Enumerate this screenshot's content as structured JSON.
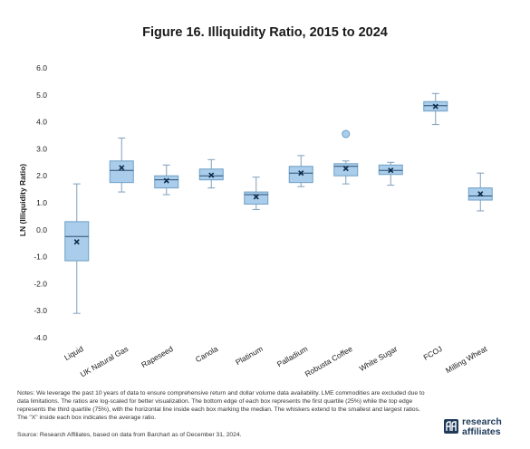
{
  "title": "Figure 16. Illiquidity Ratio, 2015 to 2024",
  "notes": "Notes: We leverage the past 10 years of data to ensure comprehensive return and dollar volume data availability. LME commodities are excluded due to data limitations. The ratios are log-scaled for better visualization. The bottom edge of each box represents the first quartile (25%) while the top edge represents the third quartile (75%), with the horizontal line inside each box marking the median. The whiskers extend to the smallest and largest ratios. The \"X\" inside each box indicates the average ratio.",
  "source": "Source: Research Affiliates, based on data from Barchart as of December 31, 2024.",
  "logo": {
    "line1": "research",
    "line2": "affiliates",
    "icon": "ra-logo-icon"
  },
  "colors": {
    "box_fill": "#a9cdea",
    "box_stroke": "#6f9fc6",
    "whisker": "#7f9fbc",
    "mean_marker": "#0d2a4a",
    "outlier": "#a9cdea"
  },
  "chart_data": {
    "type": "box",
    "title": "Figure 16. Illiquidity Ratio, 2015 to 2024",
    "ylabel": "LN (Illiquidity Ratio)",
    "xlabel": "",
    "ylim": [
      -4.0,
      6.0
    ],
    "yticks": [
      "6.0",
      "5.0",
      "4.0",
      "3.0",
      "2.0",
      "1.0",
      "0.0",
      "-1.0",
      "-2.0",
      "-3.0",
      "-4.0"
    ],
    "ytick_values": [
      6,
      5,
      4,
      3,
      2,
      1,
      0,
      -1,
      -2,
      -3,
      -4
    ],
    "grid": false,
    "categories": [
      "Liquid",
      "UK Natural Gas",
      "Rapeseed",
      "Canola",
      "Platinum",
      "Palladium",
      "Robusta Coffee",
      "White Sugar",
      "FCOJ",
      "Milling Wheat"
    ],
    "boxes": [
      {
        "min": -3.1,
        "q1": -1.15,
        "median": -0.25,
        "q3": 0.3,
        "max": 1.7,
        "mean": -0.45,
        "outliers": []
      },
      {
        "min": 1.4,
        "q1": 1.75,
        "median": 2.2,
        "q3": 2.55,
        "max": 3.4,
        "mean": 2.3,
        "outliers": []
      },
      {
        "min": 1.3,
        "q1": 1.55,
        "median": 1.85,
        "q3": 2.0,
        "max": 2.4,
        "mean": 1.82,
        "outliers": []
      },
      {
        "min": 1.55,
        "q1": 1.85,
        "median": 2.0,
        "q3": 2.25,
        "max": 2.6,
        "mean": 2.02,
        "outliers": []
      },
      {
        "min": 0.75,
        "q1": 0.95,
        "median": 1.3,
        "q3": 1.4,
        "max": 1.95,
        "mean": 1.22,
        "outliers": []
      },
      {
        "min": 1.6,
        "q1": 1.75,
        "median": 2.1,
        "q3": 2.35,
        "max": 2.75,
        "mean": 2.1,
        "outliers": []
      },
      {
        "min": 1.7,
        "q1": 2.0,
        "median": 2.35,
        "q3": 2.45,
        "max": 2.55,
        "mean": 2.27,
        "outliers": [
          3.55
        ]
      },
      {
        "min": 1.65,
        "q1": 2.05,
        "median": 2.2,
        "q3": 2.4,
        "max": 2.5,
        "mean": 2.2,
        "outliers": []
      },
      {
        "min": 3.9,
        "q1": 4.4,
        "median": 4.6,
        "q3": 4.75,
        "max": 5.05,
        "mean": 4.57,
        "outliers": []
      },
      {
        "min": 0.7,
        "q1": 1.1,
        "median": 1.25,
        "q3": 1.55,
        "max": 2.1,
        "mean": 1.33,
        "outliers": []
      }
    ]
  }
}
